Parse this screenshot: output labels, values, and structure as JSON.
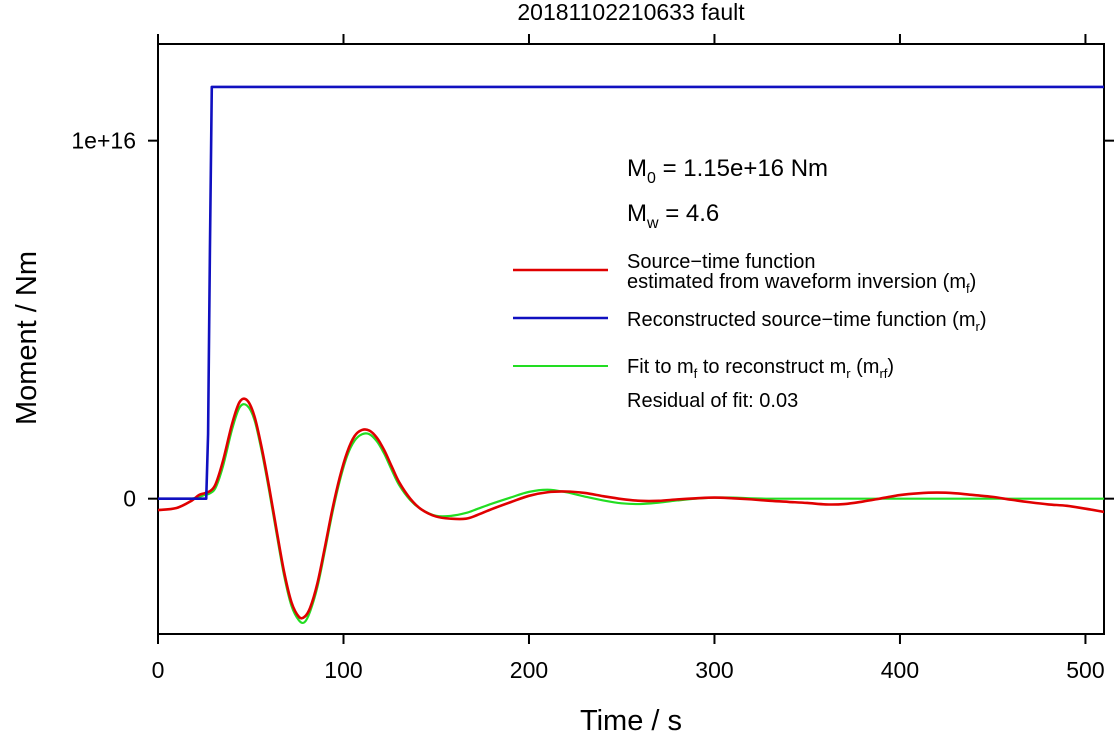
{
  "chart_data": {
    "type": "line",
    "title": "20181102210633 fault",
    "xlabel": "Time / s",
    "ylabel": "Moment / Nm",
    "xlim": [
      0,
      510
    ],
    "ylim": [
      -3780000000000000.0,
      1.27e+16
    ],
    "x_ticks": [
      0,
      100,
      200,
      300,
      400,
      500
    ],
    "x_tick_labels": [
      "0",
      "100",
      "200",
      "300",
      "400",
      "500"
    ],
    "y_ticks": [
      0,
      1e+16
    ],
    "y_tick_labels": [
      "0",
      "1e+16"
    ],
    "grid": false,
    "legend_position": "top-right",
    "annotations": {
      "m0_main": "M",
      "m0_sub": "0",
      "m0_rest": " = 1.15e+16 Nm",
      "mw_main": "M",
      "mw_sub": "w",
      "mw_rest": " = 4.6",
      "residual": "Residual of fit: 0.03"
    },
    "legend": {
      "red_line1": "Source−time function",
      "red_line2_main": "estimated from waveform inversion (m",
      "red_line2_sub": "f",
      "red_line2_end": ")",
      "blue_main": "Reconstructed source−time function (m",
      "blue_sub": "r",
      "blue_end": ")",
      "green_a": "Fit to m",
      "green_a_sub": "f",
      "green_b": " to reconstruct m",
      "green_b_sub": "r",
      "green_c": " (m",
      "green_c_sub": "rf",
      "green_d": ")"
    },
    "series": [
      {
        "color": "#e00000",
        "x": [
          0,
          10,
          18,
          22,
          25,
          28,
          31,
          35,
          40,
          44,
          48,
          52,
          56,
          60,
          64,
          68,
          72,
          76,
          79,
          82,
          86,
          90,
          94,
          98,
          102,
          106,
          110,
          114,
          118,
          122,
          126,
          130,
          136,
          142,
          150,
          158,
          166,
          172,
          180,
          190,
          200,
          210,
          220,
          230,
          240,
          250,
          260,
          270,
          280,
          290,
          300,
          310,
          320,
          330,
          340,
          350,
          360,
          370,
          380,
          390,
          400,
          410,
          420,
          430,
          440,
          450,
          460,
          470,
          480,
          490,
          500,
          510
        ],
        "y": [
          -320000000000000.0,
          -260000000000000.0,
          -60000000000000.0,
          100000000000000.0,
          150000000000000.0,
          210000000000000.0,
          400000000000000.0,
          1050000000000000.0,
          2100000000000000.0,
          2700000000000000.0,
          2750000000000000.0,
          2300000000000000.0,
          1400000000000000.0,
          300000000000000.0,
          -900000000000000.0,
          -2050000000000000.0,
          -2900000000000000.0,
          -3300000000000000.0,
          -3300000000000000.0,
          -3050000000000000.0,
          -2350000000000000.0,
          -1350000000000000.0,
          -300000000000000.0,
          600000000000000.0,
          1300000000000000.0,
          1750000000000000.0,
          1920000000000000.0,
          1900000000000000.0,
          1700000000000000.0,
          1350000000000000.0,
          900000000000000.0,
          460000000000000.0,
          0,
          -300000000000000.0,
          -500000000000000.0,
          -560000000000000.0,
          -560000000000000.0,
          -460000000000000.0,
          -290000000000000.0,
          -100000000000000.0,
          80000000000000.0,
          180000000000000.0,
          200000000000000.0,
          160000000000000.0,
          70000000000000.0,
          -10000000000000.0,
          -60000000000000.0,
          -60000000000000.0,
          -20000000000000.0,
          10000000000000.0,
          30000000000000.0,
          10000000000000.0,
          -20000000000000.0,
          -60000000000000.0,
          -90000000000000.0,
          -120000000000000.0,
          -160000000000000.0,
          -150000000000000.0,
          -80000000000000.0,
          10000000000000.0,
          100000000000000.0,
          150000000000000.0,
          170000000000000.0,
          150000000000000.0,
          100000000000000.0,
          50000000000000.0,
          -30000000000000.0,
          -100000000000000.0,
          -160000000000000.0,
          -200000000000000.0,
          -280000000000000.0,
          -370000000000000.0
        ]
      },
      {
        "color": "#1010c0",
        "x": [
          0,
          22,
          26,
          27,
          28,
          29,
          30,
          510
        ],
        "y": [
          0,
          0,
          0,
          1800000000000000.0,
          7000000000000000.0,
          1.15e+16,
          1.15e+16,
          1.15e+16
        ]
      },
      {
        "color": "#22dd22",
        "x": [
          0,
          10,
          18,
          22,
          25,
          28,
          31,
          35,
          40,
          44,
          48,
          52,
          56,
          60,
          64,
          68,
          72,
          76,
          79,
          82,
          86,
          90,
          94,
          98,
          102,
          106,
          110,
          114,
          118,
          122,
          126,
          130,
          136,
          142,
          150,
          158,
          166,
          172,
          180,
          190,
          200,
          210,
          220,
          230,
          240,
          250,
          260,
          270,
          280,
          290,
          300,
          310,
          320,
          330,
          340,
          350,
          360,
          370,
          380,
          390,
          400,
          410,
          420,
          430,
          440,
          450,
          460,
          470,
          480,
          490,
          500,
          510
        ],
        "y": [
          0,
          0,
          0,
          50000000000000.0,
          100000000000000.0,
          150000000000000.0,
          300000000000000.0,
          900000000000000.0,
          1950000000000000.0,
          2550000000000000.0,
          2600000000000000.0,
          2200000000000000.0,
          1300000000000000.0,
          200000000000000.0,
          -1000000000000000.0,
          -2150000000000000.0,
          -3000000000000000.0,
          -3400000000000000.0,
          -3450000000000000.0,
          -3150000000000000.0,
          -2450000000000000.0,
          -1450000000000000.0,
          -400000000000000.0,
          500000000000000.0,
          1200000000000000.0,
          1620000000000000.0,
          1800000000000000.0,
          1800000000000000.0,
          1600000000000000.0,
          1250000000000000.0,
          800000000000000.0,
          380000000000000.0,
          -40000000000000.0,
          -300000000000000.0,
          -480000000000000.0,
          -480000000000000.0,
          -400000000000000.0,
          -290000000000000.0,
          -140000000000000.0,
          30000000000000.0,
          190000000000000.0,
          250000000000000.0,
          180000000000000.0,
          60000000000000.0,
          -50000000000000.0,
          -130000000000000.0,
          -150000000000000.0,
          -110000000000000.0,
          -50000000000000.0,
          0,
          30000000000000.0,
          30000000000000.0,
          10000000000000.0,
          0,
          0,
          0,
          0,
          0,
          0,
          0,
          0,
          0,
          0,
          0,
          0,
          0,
          0,
          0,
          0,
          0,
          0,
          0
        ]
      }
    ]
  }
}
